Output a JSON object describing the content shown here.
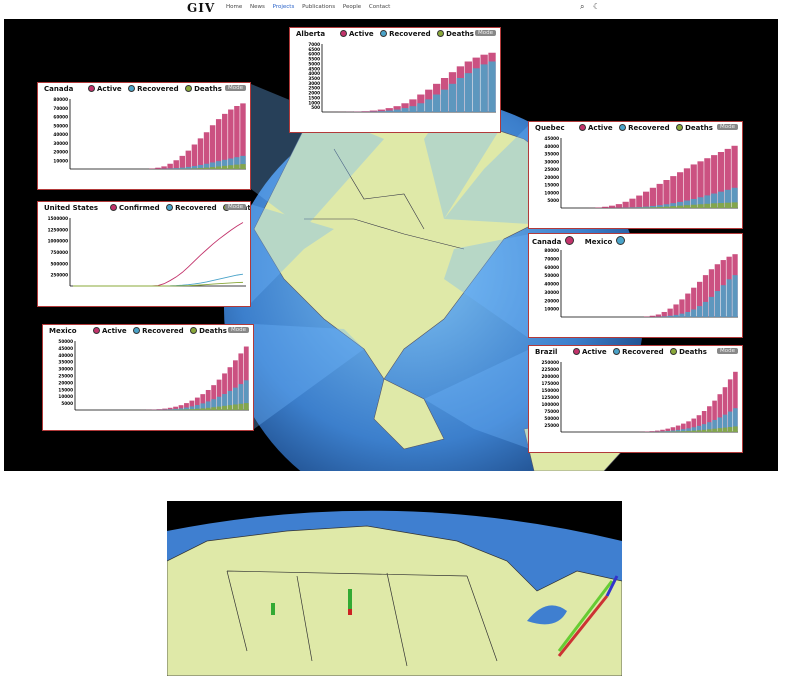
{
  "nav": {
    "logo": "GIV",
    "links": [
      "Home",
      "News",
      "Projects",
      "Publications",
      "People",
      "Contact"
    ],
    "active": "Projects",
    "icons": [
      "search-icon",
      "moon-icon"
    ]
  },
  "legend": {
    "active": "Active",
    "recovered": "Recovered",
    "deaths": "Deaths",
    "confirmed": "Confirmed",
    "mode": "Mode"
  },
  "colors": {
    "active": "#c2336b",
    "recovered": "#4aa3c9",
    "deaths": "#8aa83a",
    "globe_land": "#dfe9a8",
    "globe_ocean": "#4b8fd8"
  },
  "panels": {
    "alberta": {
      "title": "Alberta",
      "yticks": [
        "7000",
        "6500",
        "6000",
        "5500",
        "5000",
        "4500",
        "4000",
        "3500",
        "3000",
        "2500",
        "2000",
        "1500",
        "1000",
        "500"
      ]
    },
    "canada": {
      "title": "Canada",
      "yticks": [
        "80000",
        "70000",
        "60000",
        "50000",
        "40000",
        "30000",
        "20000",
        "10000"
      ]
    },
    "quebec": {
      "title": "Quebec",
      "yticks": [
        "45000",
        "40000",
        "35000",
        "30000",
        "25000",
        "20000",
        "15000",
        "10000",
        "5000"
      ]
    },
    "us": {
      "title": "United States",
      "yticks": [
        "1500000",
        "1250000",
        "1000000",
        "750000",
        "500000",
        "250000"
      ]
    },
    "compare": {
      "title_a": "Canada",
      "title_b": "Mexico",
      "yticks": [
        "80000",
        "70000",
        "60000",
        "50000",
        "40000",
        "30000",
        "20000",
        "10000"
      ]
    },
    "mexico": {
      "title": "Mexico",
      "yticks": [
        "50000",
        "45000",
        "40000",
        "35000",
        "30000",
        "25000",
        "20000",
        "15000",
        "10000",
        "5000"
      ]
    },
    "brazil": {
      "title": "Brazil",
      "yticks": [
        "250000",
        "225000",
        "200000",
        "175000",
        "150000",
        "125000",
        "100000",
        "75000",
        "50000",
        "25000"
      ]
    }
  },
  "chart_data": [
    {
      "type": "bar",
      "title": "Alberta",
      "series": [
        {
          "name": "Active",
          "values": [
            0,
            5,
            10,
            20,
            40,
            80,
            150,
            250,
            400,
            600,
            900,
            1300,
            1800,
            2300,
            2900,
            3500,
            4100,
            4700,
            5200,
            5600,
            5900,
            6100
          ]
        },
        {
          "name": "Recovered",
          "values": [
            0,
            0,
            0,
            5,
            10,
            20,
            40,
            80,
            150,
            250,
            400,
            600,
            900,
            1300,
            1800,
            2300,
            2900,
            3500,
            4000,
            4500,
            4900,
            5200
          ]
        }
      ],
      "ylim": [
        0,
        7000
      ]
    },
    {
      "type": "bar",
      "title": "Canada",
      "series": [
        {
          "name": "Active",
          "values": [
            0,
            0,
            0,
            0,
            0,
            0,
            0,
            0,
            0,
            0,
            0,
            0,
            0,
            500,
            1500,
            3000,
            6000,
            10000,
            15000,
            21000,
            28000,
            35000,
            42000,
            50000,
            57000,
            63000,
            68000,
            72000,
            75000
          ]
        },
        {
          "name": "Recovered",
          "values": [
            0,
            0,
            0,
            0,
            0,
            0,
            0,
            0,
            0,
            0,
            0,
            0,
            0,
            0,
            100,
            300,
            600,
            1000,
            1600,
            2400,
            3400,
            4600,
            6000,
            7500,
            9000,
            10500,
            12000,
            13500,
            15000
          ]
        },
        {
          "name": "Deaths",
          "values": [
            0,
            0,
            0,
            0,
            0,
            0,
            0,
            0,
            0,
            0,
            0,
            0,
            0,
            0,
            0,
            10,
            40,
            100,
            200,
            400,
            700,
            1100,
            1600,
            2200,
            2900,
            3600,
            4300,
            5000,
            5600
          ]
        }
      ],
      "ylim": [
        0,
        80000
      ]
    },
    {
      "type": "bar",
      "title": "Quebec",
      "series": [
        {
          "name": "Active",
          "values": [
            0,
            0,
            0,
            0,
            50,
            300,
            800,
            1500,
            2500,
            4000,
            6000,
            8000,
            10500,
            13000,
            15500,
            18000,
            20500,
            23000,
            25500,
            28000,
            30000,
            32000,
            34000,
            36000,
            38000,
            40000
          ]
        },
        {
          "name": "Recovered",
          "values": [
            0,
            0,
            0,
            0,
            0,
            0,
            20,
            60,
            120,
            250,
            400,
            600,
            900,
            1300,
            1800,
            2400,
            3100,
            3900,
            4800,
            5800,
            6900,
            8100,
            9300,
            10500,
            11700,
            13000
          ]
        },
        {
          "name": "Deaths",
          "values": [
            0,
            0,
            0,
            0,
            0,
            0,
            0,
            5,
            20,
            50,
            100,
            180,
            300,
            450,
            650,
            900,
            1200,
            1500,
            1800,
            2100,
            2400,
            2700,
            3000,
            3200,
            3400,
            3600
          ]
        }
      ],
      "ylim": [
        0,
        45000
      ]
    },
    {
      "type": "line",
      "title": "United States",
      "series": [
        {
          "name": "Confirmed",
          "values": [
            0,
            0,
            0,
            0,
            0,
            0,
            0,
            0,
            0,
            0,
            0,
            0,
            0,
            1000,
            10000,
            50000,
            120000,
            200000,
            300000,
            420000,
            550000,
            680000,
            800000,
            920000,
            1030000,
            1130000,
            1230000,
            1320000,
            1400000
          ]
        },
        {
          "name": "Recovered",
          "values": [
            0,
            0,
            0,
            0,
            0,
            0,
            0,
            0,
            0,
            0,
            0,
            0,
            0,
            0,
            0,
            500,
            3000,
            9000,
            18000,
            30000,
            45000,
            65000,
            90000,
            120000,
            150000,
            180000,
            210000,
            240000,
            260000
          ]
        },
        {
          "name": "Deaths",
          "values": [
            0,
            0,
            0,
            0,
            0,
            0,
            0,
            0,
            0,
            0,
            0,
            0,
            0,
            0,
            0,
            50,
            300,
            1500,
            4000,
            8000,
            14000,
            22000,
            32000,
            42000,
            52000,
            60000,
            68000,
            75000,
            80000
          ]
        }
      ],
      "ylim": [
        0,
        1500000
      ]
    },
    {
      "type": "bar",
      "title": "Canada vs Mexico",
      "series": [
        {
          "name": "Canada",
          "values": [
            0,
            0,
            0,
            0,
            0,
            0,
            0,
            0,
            0,
            0,
            0,
            0,
            0,
            0,
            500,
            1500,
            3000,
            6000,
            10000,
            15000,
            21000,
            28000,
            35000,
            42000,
            50000,
            57000,
            63000,
            68000,
            72000,
            75000
          ]
        },
        {
          "name": "Mexico",
          "values": [
            0,
            0,
            0,
            0,
            0,
            0,
            0,
            0,
            0,
            0,
            0,
            0,
            0,
            0,
            0,
            100,
            300,
            700,
            1500,
            2500,
            4000,
            6000,
            9000,
            13000,
            18000,
            24000,
            31000,
            38000,
            45000,
            50000
          ]
        }
      ],
      "ylim": [
        0,
        80000
      ]
    },
    {
      "type": "bar",
      "title": "Mexico",
      "series": [
        {
          "name": "Active",
          "values": [
            0,
            0,
            0,
            0,
            0,
            0,
            0,
            0,
            0,
            0,
            0,
            0,
            50,
            150,
            300,
            600,
            1000,
            1600,
            2400,
            3500,
            5000,
            6800,
            9000,
            11500,
            14500,
            18000,
            22000,
            26500,
            31000,
            36000,
            41000,
            46000
          ]
        },
        {
          "name": "Recovered",
          "values": [
            0,
            0,
            0,
            0,
            0,
            0,
            0,
            0,
            0,
            0,
            0,
            0,
            0,
            20,
            60,
            150,
            300,
            500,
            800,
            1200,
            1800,
            2600,
            3600,
            4800,
            6200,
            7800,
            9600,
            11600,
            13800,
            16200,
            18800,
            21500
          ]
        },
        {
          "name": "Deaths",
          "values": [
            0,
            0,
            0,
            0,
            0,
            0,
            0,
            0,
            0,
            0,
            0,
            0,
            0,
            0,
            5,
            20,
            50,
            100,
            180,
            300,
            450,
            650,
            900,
            1200,
            1600,
            2000,
            2500,
            3000,
            3500,
            4000,
            4500,
            5000
          ]
        }
      ],
      "ylim": [
        0,
        50000
      ]
    },
    {
      "type": "bar",
      "title": "Brazil",
      "series": [
        {
          "name": "Active",
          "values": [
            0,
            0,
            0,
            0,
            0,
            0,
            0,
            0,
            0,
            0,
            0,
            0,
            0,
            0,
            100,
            500,
            1500,
            3000,
            5000,
            8000,
            12000,
            17000,
            23000,
            30000,
            38000,
            48000,
            60000,
            75000,
            92000,
            112000,
            135000,
            160000,
            188000,
            215000
          ]
        },
        {
          "name": "Recovered",
          "values": [
            0,
            0,
            0,
            0,
            0,
            0,
            0,
            0,
            0,
            0,
            0,
            0,
            0,
            0,
            0,
            50,
            200,
            600,
            1200,
            2200,
            3600,
            5400,
            7600,
            10000,
            13000,
            17000,
            22000,
            28000,
            35000,
            43000,
            52000,
            62000,
            73000,
            85000
          ]
        },
        {
          "name": "Deaths",
          "values": [
            0,
            0,
            0,
            0,
            0,
            0,
            0,
            0,
            0,
            0,
            0,
            0,
            0,
            0,
            0,
            0,
            30,
            100,
            250,
            500,
            900,
            1400,
            2000,
            2800,
            3800,
            5000,
            6400,
            8000,
            9800,
            11800,
            13800,
            15800,
            17800,
            19800
          ]
        }
      ],
      "ylim": [
        0,
        250000
      ]
    }
  ]
}
